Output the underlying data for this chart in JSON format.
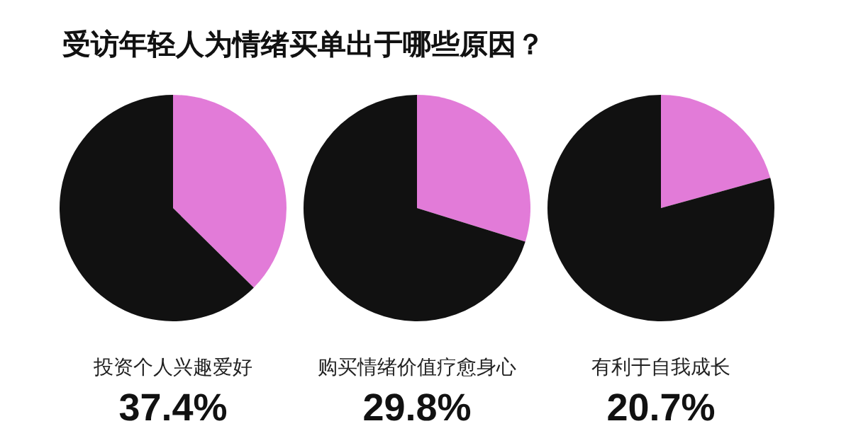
{
  "chart_data": [
    {
      "type": "other",
      "title": "受访年轻人为情绪买单出于哪些原因？"
    },
    {
      "type": "pie",
      "title": "投资个人兴趣爱好",
      "categories": [
        null,
        null
      ],
      "values": [
        37.4,
        62.6
      ],
      "colors": [
        "#e27bd8",
        "#111111"
      ],
      "annotations": [
        "37.4%"
      ]
    },
    {
      "type": "pie",
      "title": "购买情绪价值疗愈身心",
      "categories": [
        null,
        null
      ],
      "values": [
        29.8,
        70.2
      ],
      "colors": [
        "#e27bd8",
        "#111111"
      ],
      "annotations": [
        "29.8%"
      ]
    },
    {
      "type": "pie",
      "title": "有利于自我成长",
      "categories": [
        null,
        null
      ],
      "values": [
        20.7,
        79.3
      ],
      "colors": [
        "#e27bd8",
        "#111111"
      ],
      "annotations": [
        "20.7%"
      ]
    }
  ]
}
